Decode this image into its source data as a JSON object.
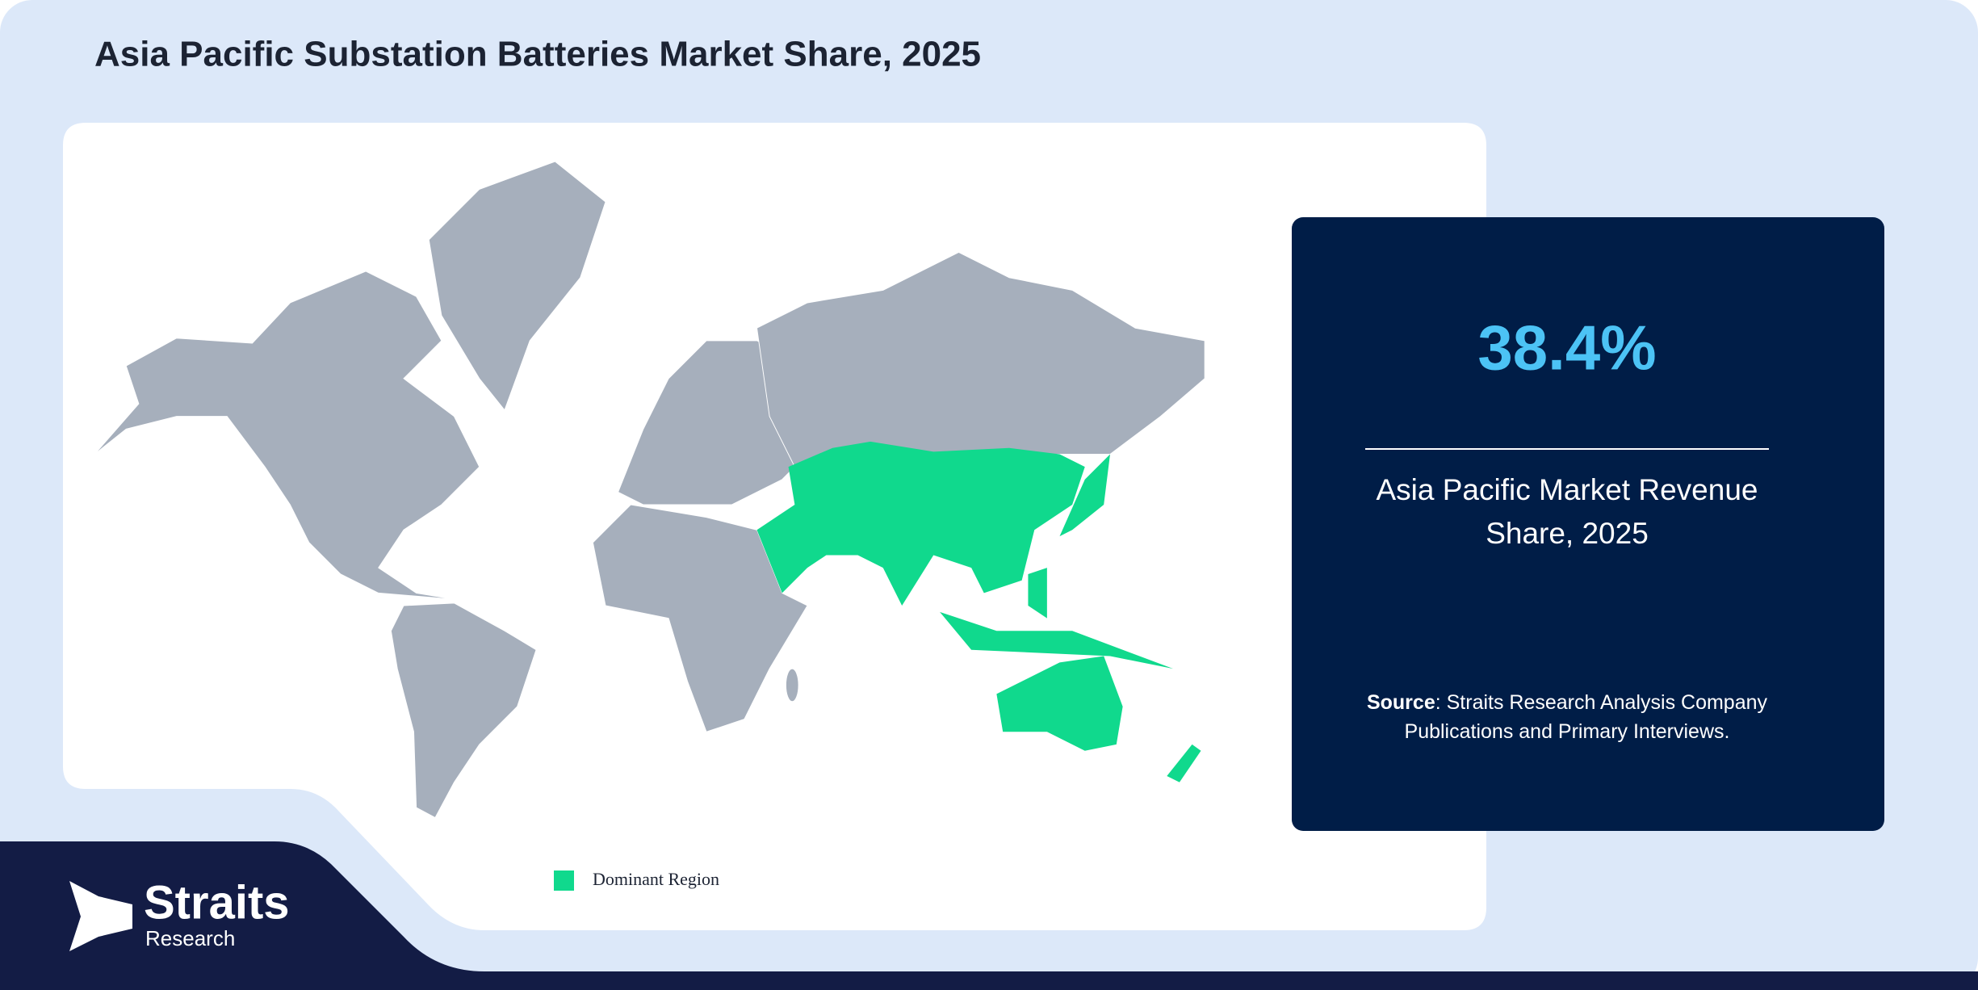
{
  "header": {
    "title": "Asia Pacific Substation Batteries Market Share, 2025"
  },
  "stat": {
    "value": "38.4%",
    "label": "Asia Pacific Market Revenue Share, 2025"
  },
  "source": {
    "label": "Source",
    "text": ": Straits Research Analysis Company Publications and Primary Interviews."
  },
  "legend": {
    "label": "Dominant Region"
  },
  "logo": {
    "name": "Straits",
    "sub": "Research"
  }
}
